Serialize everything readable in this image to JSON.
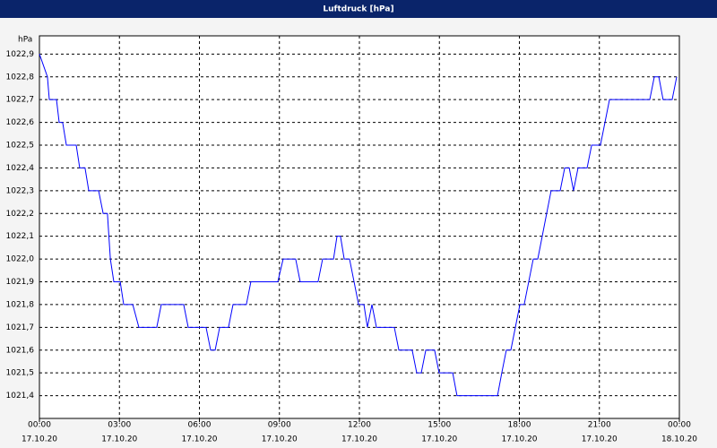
{
  "chart_data": {
    "type": "line",
    "title": "Luftdruck [hPa]",
    "y_label": "hPa",
    "x": [
      0,
      0.3,
      0.37,
      0.64,
      0.74,
      0.87,
      1.01,
      1.38,
      1.51,
      1.71,
      1.85,
      2.22,
      2.39,
      2.55,
      2.66,
      2.79,
      3.03,
      3.16,
      3.5,
      3.73,
      4.4,
      4.57,
      5.41,
      5.58,
      6.25,
      6.42,
      6.59,
      6.76,
      7.09,
      7.26,
      7.76,
      7.93,
      8.94,
      9.14,
      9.61,
      9.78,
      10.45,
      10.62,
      11.03,
      11.16,
      11.29,
      11.43,
      11.63,
      11.97,
      12.17,
      12.3,
      12.47,
      12.64,
      13.31,
      13.48,
      13.98,
      14.15,
      14.32,
      14.49,
      14.82,
      14.99,
      15.5,
      15.66,
      17.18,
      17.34,
      17.51,
      17.68,
      18.02,
      18.18,
      18.52,
      18.69,
      19.19,
      19.53,
      19.7,
      19.87,
      20.03,
      20.2,
      20.54,
      20.71,
      21.04,
      21.38,
      22.89,
      23.06,
      23.23,
      23.39,
      23.73,
      23.9
    ],
    "series": [
      {
        "name": "Luftdruck",
        "color": "#0000ff",
        "values": [
          1022.9,
          1022.8,
          1022.7,
          1022.7,
          1022.6,
          1022.6,
          1022.5,
          1022.5,
          1022.4,
          1022.4,
          1022.3,
          1022.3,
          1022.2,
          1022.2,
          1022.0,
          1021.9,
          1021.9,
          1021.8,
          1021.8,
          1021.7,
          1021.7,
          1021.8,
          1021.8,
          1021.7,
          1021.7,
          1021.6,
          1021.6,
          1021.7,
          1021.7,
          1021.8,
          1021.8,
          1021.9,
          1021.9,
          1022.0,
          1022.0,
          1021.9,
          1021.9,
          1022.0,
          1022.0,
          1022.1,
          1022.1,
          1022.0,
          1022.0,
          1021.8,
          1021.8,
          1021.7,
          1021.8,
          1021.7,
          1021.7,
          1021.6,
          1021.6,
          1021.5,
          1021.5,
          1021.6,
          1021.6,
          1021.5,
          1021.5,
          1021.4,
          1021.4,
          1021.5,
          1021.6,
          1021.6,
          1021.8,
          1021.8,
          1022.0,
          1022.0,
          1022.3,
          1022.3,
          1022.4,
          1022.4,
          1022.3,
          1022.4,
          1022.4,
          1022.5,
          1022.5,
          1022.7,
          1022.7,
          1022.8,
          1022.8,
          1022.7,
          1022.7,
          1022.8
        ]
      }
    ],
    "xlim": [
      0,
      24
    ],
    "xticks": [
      {
        "value": 0,
        "label": "00:00"
      },
      {
        "value": 3,
        "label": "03:00"
      },
      {
        "value": 6,
        "label": "06:00"
      },
      {
        "value": 9,
        "label": "09:00"
      },
      {
        "value": 12,
        "label": "12:00"
      },
      {
        "value": 15,
        "label": "15:00"
      },
      {
        "value": 18,
        "label": "18:00"
      },
      {
        "value": 21,
        "label": "21:00"
      },
      {
        "value": 24,
        "label": "00:00"
      }
    ],
    "xtick_dates": [
      "17.10.20",
      "17.10.20",
      "17.10.20",
      "17.10.20",
      "17.10.20",
      "17.10.20",
      "17.10.20",
      "17.10.20",
      "18.10.20"
    ],
    "ylim": [
      1021.3,
      1022.98
    ],
    "yticks": [
      {
        "value": 1021.4,
        "label": "1021,4"
      },
      {
        "value": 1021.5,
        "label": "1021,5"
      },
      {
        "value": 1021.6,
        "label": "1021,6"
      },
      {
        "value": 1021.7,
        "label": "1021,7"
      },
      {
        "value": 1021.8,
        "label": "1021,8"
      },
      {
        "value": 1021.9,
        "label": "1021,9"
      },
      {
        "value": 1022.0,
        "label": "1022,0"
      },
      {
        "value": 1022.1,
        "label": "1022,1"
      },
      {
        "value": 1022.2,
        "label": "1022,2"
      },
      {
        "value": 1022.3,
        "label": "1022,3"
      },
      {
        "value": 1022.4,
        "label": "1022,4"
      },
      {
        "value": 1022.5,
        "label": "1022,5"
      },
      {
        "value": 1022.6,
        "label": "1022,6"
      },
      {
        "value": 1022.7,
        "label": "1022,7"
      },
      {
        "value": 1022.8,
        "label": "1022,8"
      },
      {
        "value": 1022.9,
        "label": "1022,9"
      }
    ],
    "grid": true
  }
}
